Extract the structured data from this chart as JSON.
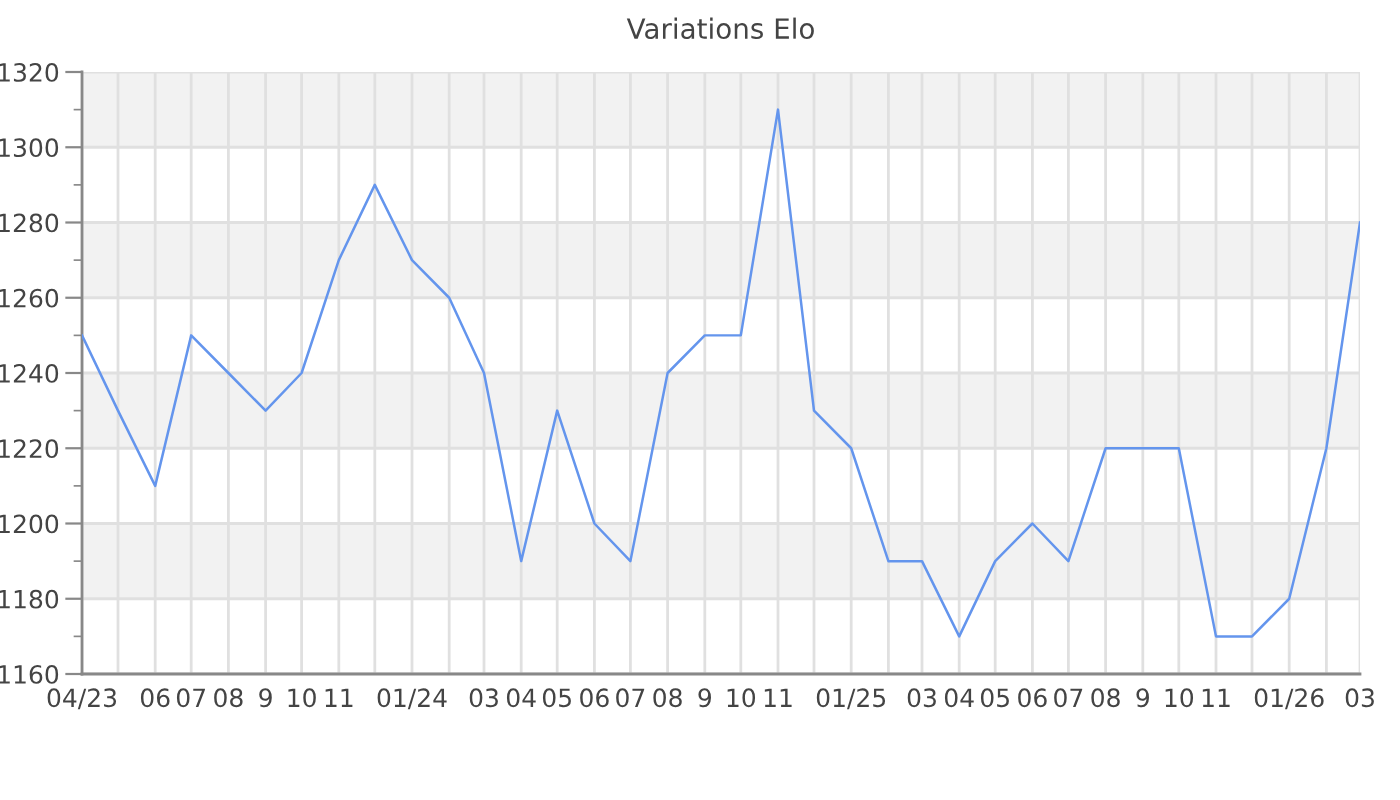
{
  "chart_data": {
    "type": "line",
    "title": "Variations Elo",
    "x": [
      "2023-04",
      "2023-05",
      "2023-06",
      "2023-07",
      "2023-08",
      "2023-09",
      "2023-10",
      "2023-11",
      "2023-12",
      "2024-01",
      "2024-02",
      "2024-03",
      "2024-04",
      "2024-05",
      "2024-06",
      "2024-07",
      "2024-08",
      "2024-09",
      "2024-10",
      "2024-11",
      "2024-12",
      "2025-01",
      "2025-02",
      "2025-03",
      "2025-04",
      "2025-05",
      "2025-06",
      "2025-07",
      "2025-08",
      "2025-09",
      "2025-10",
      "2025-11",
      "2025-12",
      "2026-01",
      "2026-02",
      "2026-03"
    ],
    "series": [
      {
        "color": "#6495ed",
        "values": [
          1250,
          1230,
          1210,
          1250,
          1240,
          1230,
          1240,
          1270,
          1290,
          1270,
          1260,
          1240,
          1190,
          1230,
          1200,
          1190,
          1240,
          1250,
          1250,
          1310,
          1230,
          1220,
          1190,
          1190,
          1170,
          1190,
          1200,
          1190,
          1220,
          1220,
          1220,
          1170,
          1170,
          1180,
          1220,
          1280
        ]
      }
    ],
    "xlim": [
      "2023-04",
      "2026-03"
    ],
    "xticks": [
      {
        "value": "2023-04",
        "label": "04/23"
      },
      {
        "value": "2023-05",
        "label": null
      },
      {
        "value": "2023-06",
        "label": "06"
      },
      {
        "value": "2023-07",
        "label": "07"
      },
      {
        "value": "2023-08",
        "label": "08"
      },
      {
        "value": "2023-09",
        "label": "9"
      },
      {
        "value": "2023-10",
        "label": "10"
      },
      {
        "value": "2023-11",
        "label": "11"
      },
      {
        "value": "2023-12",
        "label": null
      },
      {
        "value": "2024-01",
        "label": "01/24"
      },
      {
        "value": "2024-02",
        "label": null
      },
      {
        "value": "2024-03",
        "label": "03"
      },
      {
        "value": "2024-04",
        "label": "04"
      },
      {
        "value": "2024-05",
        "label": "05"
      },
      {
        "value": "2024-06",
        "label": "06"
      },
      {
        "value": "2024-07",
        "label": "07"
      },
      {
        "value": "2024-08",
        "label": "08"
      },
      {
        "value": "2024-09",
        "label": "9"
      },
      {
        "value": "2024-10",
        "label": "10"
      },
      {
        "value": "2024-11",
        "label": "11"
      },
      {
        "value": "2024-12",
        "label": null
      },
      {
        "value": "2025-01",
        "label": "01/25"
      },
      {
        "value": "2025-02",
        "label": null
      },
      {
        "value": "2025-03",
        "label": "03"
      },
      {
        "value": "2025-04",
        "label": "04"
      },
      {
        "value": "2025-05",
        "label": "05"
      },
      {
        "value": "2025-06",
        "label": "06"
      },
      {
        "value": "2025-07",
        "label": "07"
      },
      {
        "value": "2025-08",
        "label": "08"
      },
      {
        "value": "2025-09",
        "label": "9"
      },
      {
        "value": "2025-10",
        "label": "10"
      },
      {
        "value": "2025-11",
        "label": "11"
      },
      {
        "value": "2025-12",
        "label": null
      },
      {
        "value": "2026-01",
        "label": "01/26"
      },
      {
        "value": "2026-02",
        "label": null
      },
      {
        "value": "2026-03",
        "label": "03"
      }
    ],
    "ylim": [
      1160,
      1320
    ],
    "yticks": [
      1160,
      {
        "value": 1170,
        "label": null
      },
      1180,
      {
        "value": 1190,
        "label": null
      },
      1200,
      {
        "value": 1210,
        "label": null
      },
      1220,
      {
        "value": 1230,
        "label": null
      },
      1240,
      {
        "value": 1250,
        "label": null
      },
      1260,
      {
        "value": 1270,
        "label": null
      },
      1280,
      {
        "value": 1290,
        "label": null
      },
      1300,
      {
        "value": 1310,
        "label": null
      },
      1320
    ],
    "grid": true,
    "bands": [
      {
        "axis": "y",
        "from": 1180,
        "to": 1200,
        "color": "#f2f2f2"
      },
      {
        "axis": "y",
        "from": 1220,
        "to": 1240,
        "color": "#f2f2f2"
      },
      {
        "axis": "y",
        "from": 1260,
        "to": 1280,
        "color": "#f2f2f2"
      },
      {
        "axis": "y",
        "from": 1300,
        "to": 1320,
        "color": "#f2f2f2"
      }
    ]
  }
}
